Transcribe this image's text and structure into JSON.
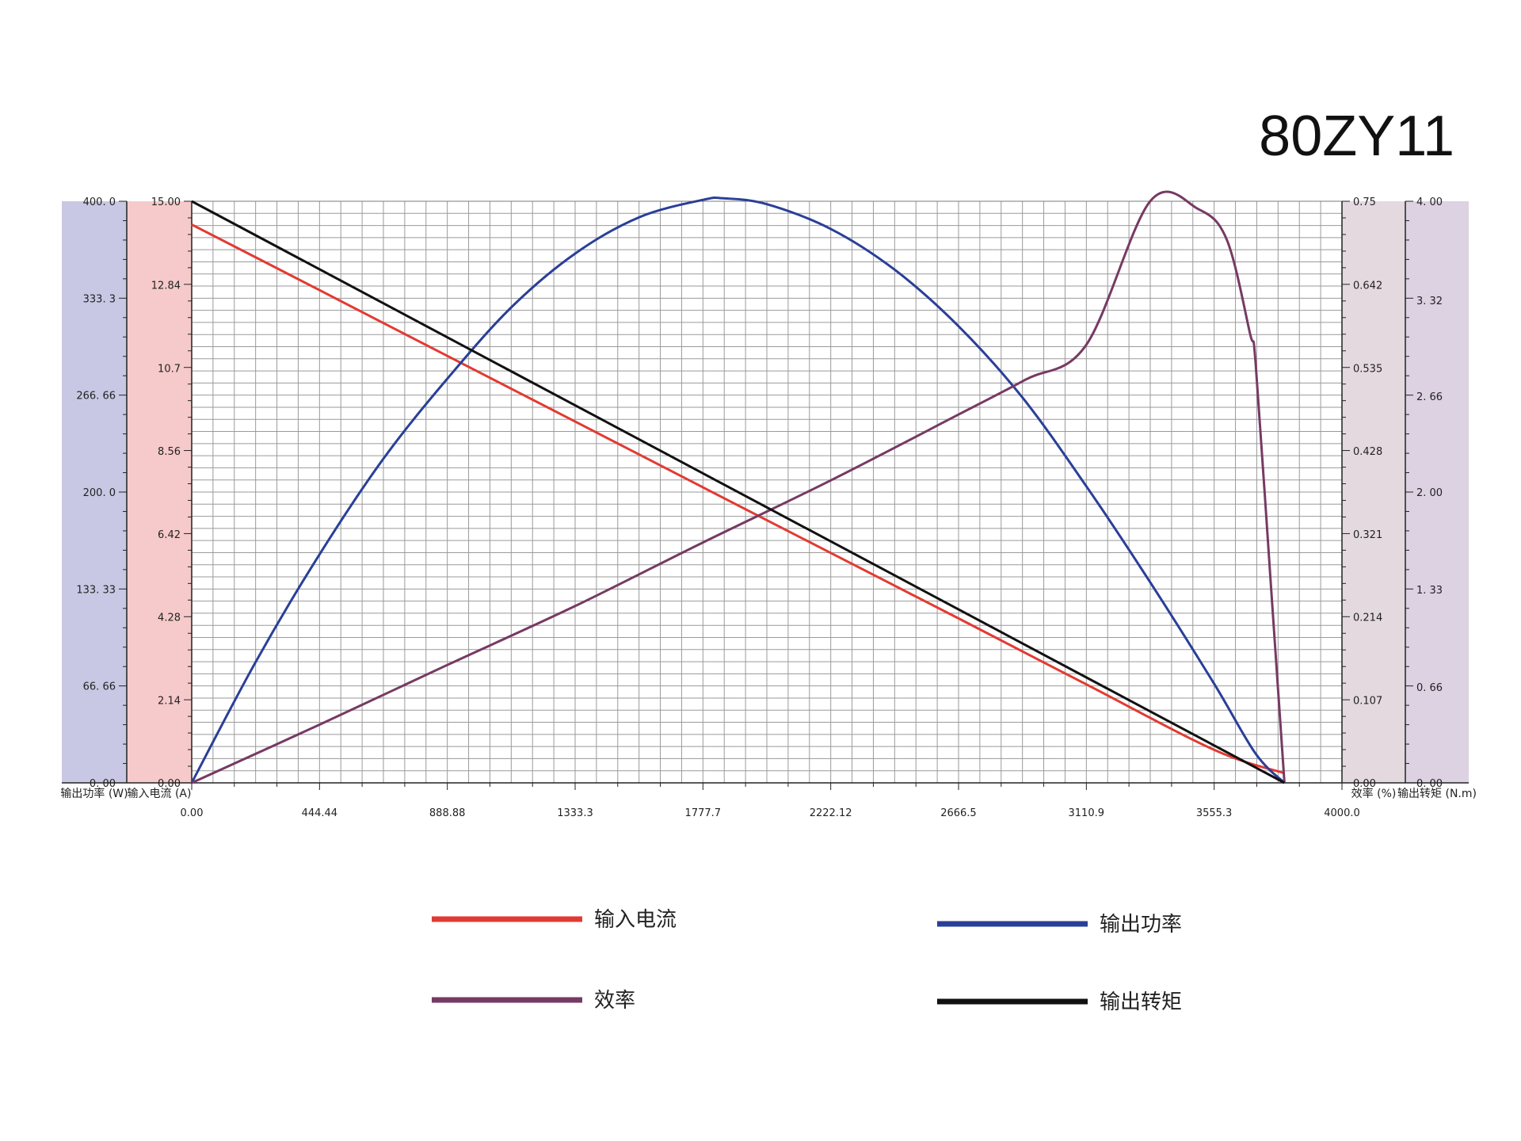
{
  "chart_data": {
    "type": "line",
    "title": "80ZY11",
    "grid": true,
    "x": {
      "range": [
        0,
        4000
      ],
      "ticks": [
        0,
        444.44,
        888.88,
        1333.3,
        1777.7,
        2222.12,
        2666.5,
        3110.9,
        3555.3,
        4000
      ],
      "tick_labels": [
        "0.00",
        "444.44",
        "888.88",
        "1333.3",
        "1777.7",
        "2222.12",
        "2666.5",
        "3110.9",
        "3555.3",
        "4000.0"
      ]
    },
    "axes": {
      "power": {
        "label": "输出功率 (W)",
        "range": [
          0,
          400
        ],
        "color": "#c8c8e4",
        "ticks": [
          0,
          66.66,
          133.33,
          200,
          266.66,
          333.3,
          400
        ],
        "tick_labels": [
          "0. 00",
          "66. 66",
          "133. 33",
          "200. 0",
          "266. 66",
          "333. 3",
          "400. 0"
        ]
      },
      "current": {
        "label": "输入电流 (A)",
        "range": [
          0,
          15
        ],
        "color": "#f6caca",
        "ticks": [
          0,
          2.14,
          4.28,
          6.42,
          8.56,
          10.7,
          12.84,
          15
        ],
        "tick_labels": [
          "0.00",
          "2.14",
          "4.28",
          "6.42",
          "8.56",
          "10.7",
          "12.84",
          "15.00"
        ]
      },
      "efficiency": {
        "label": "效率 (%)",
        "range": [
          0,
          0.75
        ],
        "color": "#e4d9df",
        "ticks": [
          0,
          0.107,
          0.214,
          0.321,
          0.428,
          0.535,
          0.642,
          0.75
        ],
        "tick_labels": [
          "0.00",
          "0.107",
          "0.214",
          "0.321",
          "0.428",
          "0.535",
          "0.642",
          "0.75"
        ]
      },
      "torque": {
        "label": "输出转矩 (N.m)",
        "range": [
          0,
          4
        ],
        "color": "#dcd2e2",
        "ticks": [
          0,
          0.66,
          1.33,
          2,
          2.66,
          3.32,
          4
        ],
        "tick_labels": [
          "0. 00",
          "0. 66",
          "1. 33",
          "2. 00",
          "2. 66",
          "3. 32",
          "4. 00"
        ]
      }
    },
    "series": [
      {
        "name": "输入电流",
        "axis": "current",
        "color": "#e23a32",
        "x": [
          0,
          444,
          889,
          1333,
          1778,
          2222,
          2667,
          3111,
          3556,
          3800
        ],
        "y": [
          14.4,
          12.71,
          11.01,
          9.32,
          7.62,
          5.93,
          4.24,
          2.54,
          0.85,
          0.25
        ]
      },
      {
        "name": "输出功率",
        "axis": "power",
        "color": "#2a3f98",
        "x": [
          0,
          222,
          444,
          667,
          889,
          1111,
          1333,
          1556,
          1778,
          1850,
          2000,
          2222,
          2444,
          2667,
          2889,
          3111,
          3333,
          3556,
          3700,
          3800
        ],
        "y": [
          0,
          83,
          157,
          223,
          278,
          327,
          364,
          389,
          401,
          402,
          398,
          381,
          353,
          314,
          265,
          204,
          138,
          68,
          20,
          0
        ]
      },
      {
        "name": "效率",
        "axis": "efficiency",
        "color": "#763a63",
        "x": [
          0,
          444,
          889,
          1333,
          1778,
          2222,
          2667,
          2900,
          3111,
          3333,
          3500,
          3600,
          3680,
          3700,
          3750,
          3800
        ],
        "y": [
          0,
          0.075,
          0.152,
          0.228,
          0.31,
          0.39,
          0.475,
          0.52,
          0.565,
          0.75,
          0.74,
          0.7,
          0.58,
          0.54,
          0.27,
          0
        ]
      },
      {
        "name": "输出转矩",
        "axis": "torque",
        "color": "#111111",
        "x": [
          0,
          3800
        ],
        "y": [
          4.0,
          0
        ]
      }
    ],
    "legend": {
      "position": "bottom",
      "items": [
        {
          "label": "输入电流",
          "color": "#e23a32"
        },
        {
          "label": "输出功率",
          "color": "#2a3f98"
        },
        {
          "label": "效率",
          "color": "#763a63"
        },
        {
          "label": "输出转矩",
          "color": "#111111"
        }
      ]
    }
  }
}
